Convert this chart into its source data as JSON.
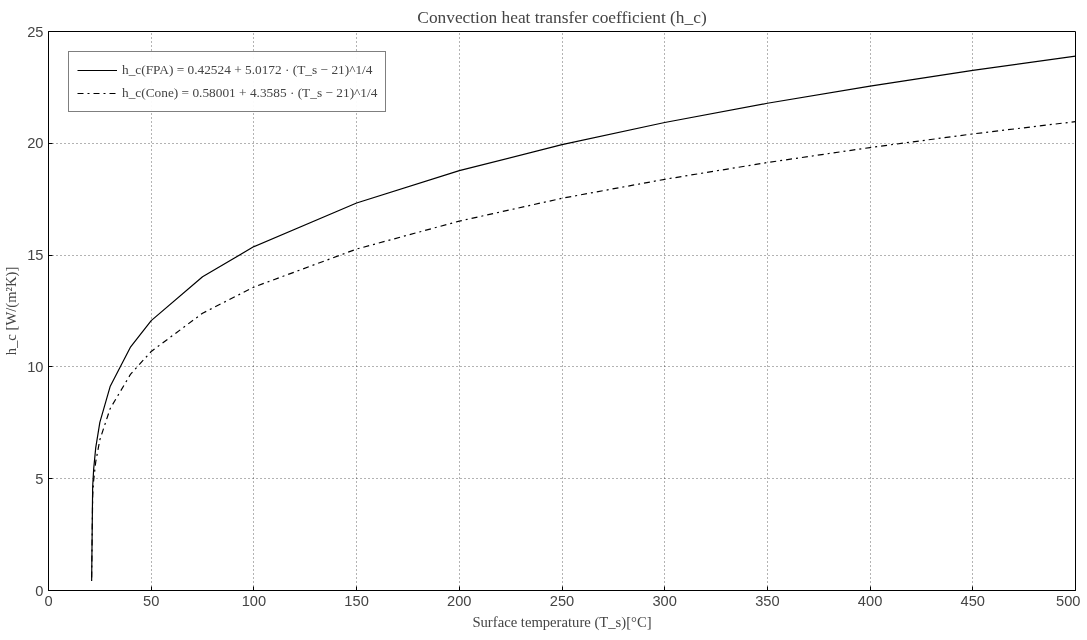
{
  "chart_data": {
    "type": "line",
    "title": "Convection heat transfer coefficient (h_c)",
    "xlabel": "Surface temperature (T_s)[°C]",
    "ylabel": "h_c [W/(m²K)]",
    "x": [
      21,
      21.5,
      22,
      23,
      25,
      30,
      40,
      50,
      75,
      100,
      150,
      200,
      250,
      300,
      350,
      400,
      450,
      500
    ],
    "series": [
      {
        "name": "h_c(FPA) = 0.42524 + 5.0172 · (T_s − 21)^1/4",
        "color": "#000000",
        "line_style": "solid",
        "values": [
          0.43,
          4.64,
          5.44,
          6.39,
          7.52,
          9.12,
          10.9,
          12.07,
          14.03,
          15.38,
          17.33,
          18.78,
          19.94,
          20.93,
          21.79,
          22.56,
          23.26,
          23.9
        ]
      },
      {
        "name": "h_c(Cone) = 0.58001 + 4.3585 · (T_s − 21)^1/4",
        "color": "#000000",
        "line_style": "dashdot",
        "values": [
          0.58,
          4.25,
          4.94,
          5.76,
          6.74,
          8.13,
          9.68,
          10.69,
          12.4,
          13.57,
          15.27,
          16.52,
          17.54,
          18.39,
          19.14,
          19.81,
          20.42,
          20.97
        ]
      }
    ],
    "xlim": [
      0,
      500
    ],
    "ylim": [
      0,
      25
    ],
    "xticks": [
      0,
      50,
      100,
      150,
      200,
      250,
      300,
      350,
      400,
      450,
      500
    ],
    "yticks": [
      0,
      5,
      10,
      15,
      20,
      25
    ],
    "grid": true,
    "legend": "top left",
    "marker": "none"
  }
}
